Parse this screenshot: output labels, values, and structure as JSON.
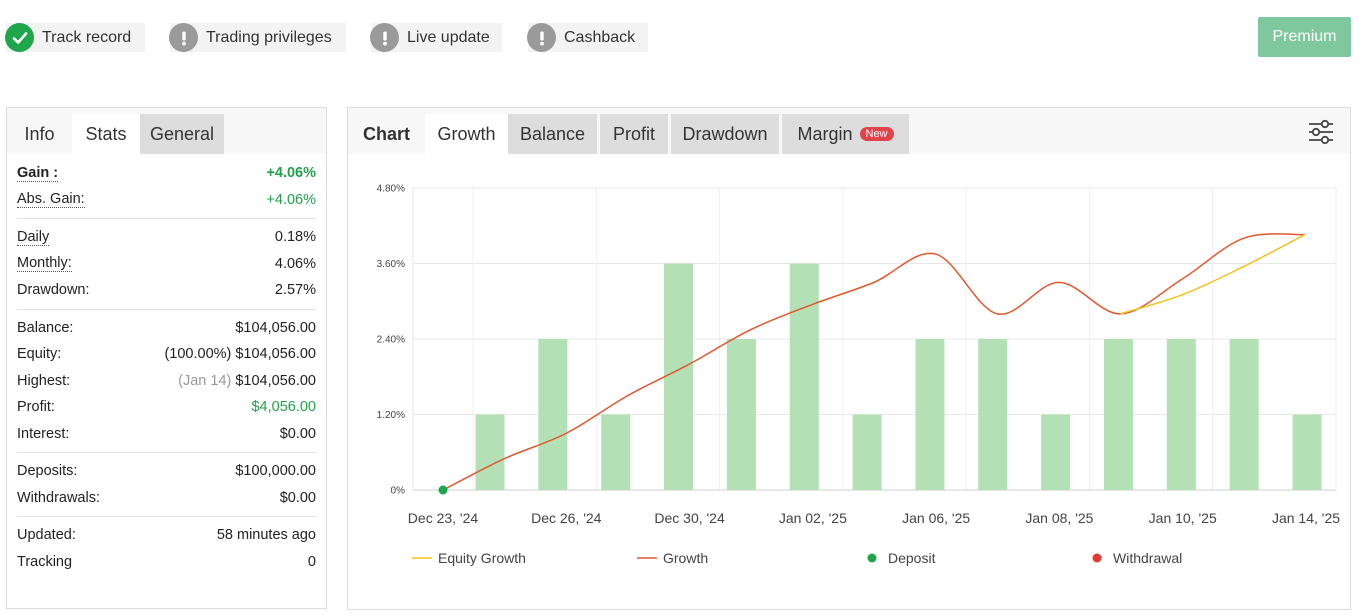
{
  "badges": [
    {
      "label": "Track record",
      "icon": "check-circle-icon",
      "color": "#1fa64a"
    },
    {
      "label": "Trading privileges",
      "icon": "exclamation-circle-icon",
      "color": "#9a9a9a"
    },
    {
      "label": "Live update",
      "icon": "exclamation-circle-icon",
      "color": "#9a9a9a"
    },
    {
      "label": "Cashback",
      "icon": "exclamation-circle-icon",
      "color": "#9a9a9a"
    }
  ],
  "premium_label": "Premium",
  "left_tabs": [
    "Info",
    "Stats",
    "General"
  ],
  "stats": {
    "gain": {
      "label": "Gain :",
      "value": "+4.06%"
    },
    "abs_gain": {
      "label": "Abs. Gain:",
      "value": "+4.06%"
    },
    "daily": {
      "label": "Daily",
      "value": "0.18%"
    },
    "monthly": {
      "label": "Monthly:",
      "value": "4.06%"
    },
    "drawdown": {
      "label": "Drawdown:",
      "value": "2.57%"
    },
    "balance": {
      "label": "Balance:",
      "value": "$104,056.00"
    },
    "equity": {
      "label": "Equity:",
      "prefix": "(100.00%)",
      "value": "$104,056.00"
    },
    "highest": {
      "label": "Highest:",
      "prefix": "(Jan 14)",
      "value": "$104,056.00"
    },
    "profit": {
      "label": "Profit:",
      "value": "$4,056.00"
    },
    "interest": {
      "label": "Interest:",
      "value": "$0.00"
    },
    "deposits": {
      "label": "Deposits:",
      "value": "$100,000.00"
    },
    "withdrawals": {
      "label": "Withdrawals:",
      "value": "$0.00"
    },
    "updated": {
      "label": "Updated:",
      "value": "58 minutes ago"
    },
    "tracking": {
      "label": "Tracking",
      "value": "0"
    }
  },
  "chart_tabs": {
    "header": "Chart",
    "items": [
      "Growth",
      "Balance",
      "Profit",
      "Drawdown",
      "Margin"
    ],
    "new_badge": "New"
  },
  "colors": {
    "bar": "#b3e0b5",
    "growth_line": "#e2572d",
    "equity_line": "#f2c21c",
    "deposit": "#1fa64a",
    "withdrawal": "#e53935"
  },
  "chart_data": {
    "type": "bar+line",
    "ylim": [
      0,
      4.8
    ],
    "yticks": [
      "0%",
      "1.20%",
      "2.40%",
      "3.60%",
      "4.80%"
    ],
    "ytick_values": [
      0,
      1.2,
      2.4,
      3.6,
      4.8
    ],
    "xticks": [
      "Dec 23, '24",
      "Dec 26, '24",
      "Dec 30, '24",
      "Jan 02, '25",
      "Jan 06, '25",
      "Jan 08, '25",
      "Jan 10, '25",
      "Jan 14, '25"
    ],
    "bars": [
      1.2,
      2.4,
      1.2,
      3.6,
      2.4,
      3.6,
      1.2,
      2.4,
      2.4,
      1.2,
      2.4,
      2.4,
      2.4,
      1.2
    ],
    "growth": [
      0,
      0.5,
      0.9,
      1.5,
      2.0,
      2.55,
      2.95,
      3.3,
      3.75,
      2.8,
      3.3,
      2.8,
      3.35,
      4.0,
      4.06
    ],
    "equity_growth_start_index": 11,
    "equity_growth": [
      2.8,
      3.1,
      3.55,
      4.06
    ],
    "deposit_points": [
      0
    ],
    "legend": [
      "Equity Growth",
      "Growth",
      "Deposit",
      "Withdrawal"
    ]
  }
}
